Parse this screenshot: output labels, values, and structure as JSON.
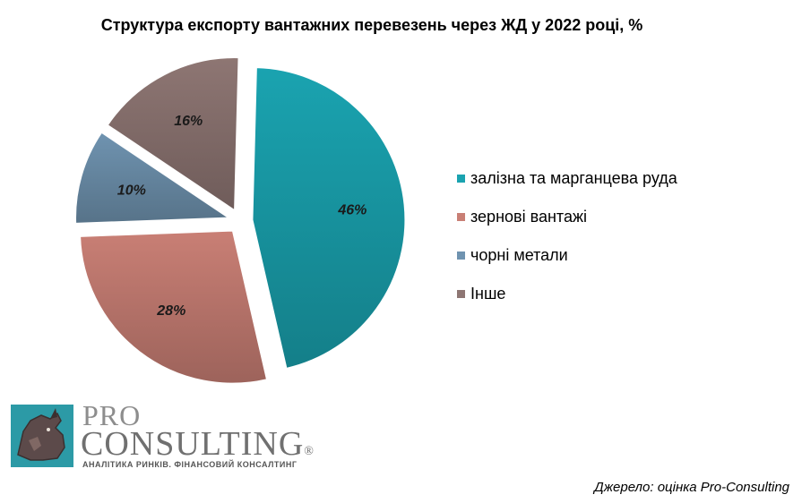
{
  "chart_data": {
    "type": "pie",
    "title": "Структура експорту вантажних перевезень через ЖД у 2022 році, %",
    "slices": [
      {
        "name": "залізна та марганцева руда",
        "value": 46,
        "label": "46%",
        "color": "#1aa3b0",
        "exploded": true
      },
      {
        "name": "зернові вантажі",
        "value": 28,
        "label": "28%",
        "color": "#c97f75",
        "exploded": true
      },
      {
        "name": "чорні метали",
        "value": 10,
        "label": "10%",
        "color": "#6f93b0",
        "exploded": true
      },
      {
        "name": "Інше",
        "value": 16,
        "label": "16%",
        "color": "#8e7673",
        "exploded": true
      }
    ],
    "legend_position": "right"
  },
  "logo": {
    "pro": "PRO",
    "consulting": "CONSULTING",
    "registered": "®",
    "tagline": "АНАЛІТИКА РИНКІВ. ФІНАНСОВИЙ КОНСАЛТИНГ"
  },
  "source": "Джерело: оцінка Pro-Consulting"
}
